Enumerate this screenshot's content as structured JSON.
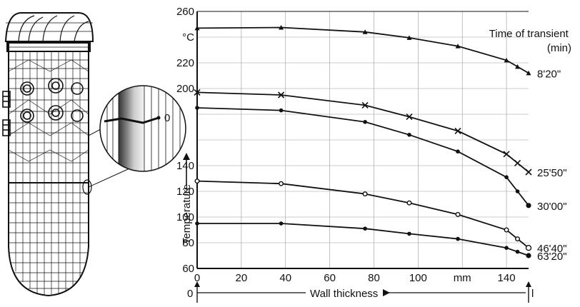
{
  "chart_data": {
    "type": "line",
    "xlabel": "Wall thickness",
    "x_unit": "mm",
    "ylabel": "Temperature",
    "y_unit": "°C",
    "xlim": [
      0,
      150
    ],
    "ylim": [
      60,
      260
    ],
    "x_ticks": [
      "0",
      "20",
      "40",
      "60",
      "80",
      "100",
      "mm",
      "140"
    ],
    "y_ticks": [
      "260",
      "°C",
      "220",
      "200",
      "140",
      "120",
      "100",
      "80",
      "60"
    ],
    "legend_title": "Time of transient (min)",
    "grid": true,
    "wall_start_label": "0",
    "wall_end_label": "l",
    "detail_label": "0",
    "series": [
      {
        "name": "8'20\"",
        "marker": "triangle",
        "x": [
          0,
          38,
          76,
          96,
          118,
          140,
          145,
          150
        ],
        "y": [
          247,
          247.5,
          244,
          239.5,
          233,
          222,
          217,
          212
        ]
      },
      {
        "name": "25'50\"",
        "marker": "cross",
        "x": [
          0,
          38,
          76,
          96,
          118,
          140,
          145,
          150
        ],
        "y": [
          197,
          195,
          187,
          178,
          167,
          149,
          142,
          135
        ]
      },
      {
        "name": "30'00\"",
        "marker": "dot",
        "x": [
          0,
          38,
          76,
          96,
          118,
          140,
          145,
          150
        ],
        "y": [
          185,
          183,
          174,
          164,
          151,
          131,
          120,
          109
        ]
      },
      {
        "name": "46'40\"",
        "marker": "circle",
        "x": [
          0,
          38,
          76,
          96,
          118,
          140,
          145,
          150
        ],
        "y": [
          128,
          126,
          118,
          111,
          102,
          90,
          83,
          76
        ]
      },
      {
        "name": "63'20\"",
        "marker": "dot",
        "x": [
          0,
          38,
          76,
          96,
          118,
          140,
          145,
          150
        ],
        "y": [
          95,
          95,
          91,
          87,
          83,
          76,
          73,
          70
        ]
      }
    ]
  }
}
